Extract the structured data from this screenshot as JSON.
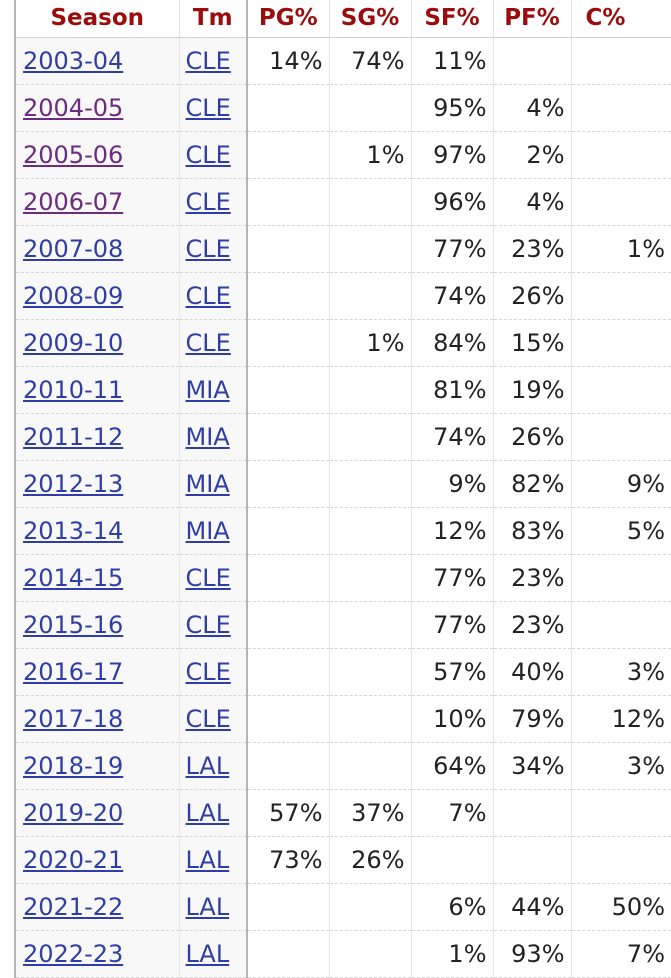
{
  "table": {
    "headers": [
      "Season",
      "Tm",
      "PG%",
      "SG%",
      "SF%",
      "PF%",
      "C%"
    ],
    "rows": [
      {
        "season": "2003-04",
        "team": "CLE",
        "pg": "14%",
        "sg": "74%",
        "sf": "11%",
        "pf": "",
        "c": "",
        "visited": false
      },
      {
        "season": "2004-05",
        "team": "CLE",
        "pg": "",
        "sg": "",
        "sf": "95%",
        "pf": "4%",
        "c": "",
        "visited": true
      },
      {
        "season": "2005-06",
        "team": "CLE",
        "pg": "",
        "sg": "1%",
        "sf": "97%",
        "pf": "2%",
        "c": "",
        "visited": true
      },
      {
        "season": "2006-07",
        "team": "CLE",
        "pg": "",
        "sg": "",
        "sf": "96%",
        "pf": "4%",
        "c": "",
        "visited": true
      },
      {
        "season": "2007-08",
        "team": "CLE",
        "pg": "",
        "sg": "",
        "sf": "77%",
        "pf": "23%",
        "c": "1%",
        "visited": false
      },
      {
        "season": "2008-09",
        "team": "CLE",
        "pg": "",
        "sg": "",
        "sf": "74%",
        "pf": "26%",
        "c": "",
        "visited": false
      },
      {
        "season": "2009-10",
        "team": "CLE",
        "pg": "",
        "sg": "1%",
        "sf": "84%",
        "pf": "15%",
        "c": "",
        "visited": false
      },
      {
        "season": "2010-11",
        "team": "MIA",
        "pg": "",
        "sg": "",
        "sf": "81%",
        "pf": "19%",
        "c": "",
        "visited": false
      },
      {
        "season": "2011-12",
        "team": "MIA",
        "pg": "",
        "sg": "",
        "sf": "74%",
        "pf": "26%",
        "c": "",
        "visited": false
      },
      {
        "season": "2012-13",
        "team": "MIA",
        "pg": "",
        "sg": "",
        "sf": "9%",
        "pf": "82%",
        "c": "9%",
        "visited": false
      },
      {
        "season": "2013-14",
        "team": "MIA",
        "pg": "",
        "sg": "",
        "sf": "12%",
        "pf": "83%",
        "c": "5%",
        "visited": false
      },
      {
        "season": "2014-15",
        "team": "CLE",
        "pg": "",
        "sg": "",
        "sf": "77%",
        "pf": "23%",
        "c": "",
        "visited": false
      },
      {
        "season": "2015-16",
        "team": "CLE",
        "pg": "",
        "sg": "",
        "sf": "77%",
        "pf": "23%",
        "c": "",
        "visited": false
      },
      {
        "season": "2016-17",
        "team": "CLE",
        "pg": "",
        "sg": "",
        "sf": "57%",
        "pf": "40%",
        "c": "3%",
        "visited": false
      },
      {
        "season": "2017-18",
        "team": "CLE",
        "pg": "",
        "sg": "",
        "sf": "10%",
        "pf": "79%",
        "c": "12%",
        "visited": false
      },
      {
        "season": "2018-19",
        "team": "LAL",
        "pg": "",
        "sg": "",
        "sf": "64%",
        "pf": "34%",
        "c": "3%",
        "visited": false
      },
      {
        "season": "2019-20",
        "team": "LAL",
        "pg": "57%",
        "sg": "37%",
        "sf": "7%",
        "pf": "",
        "c": "",
        "visited": false
      },
      {
        "season": "2020-21",
        "team": "LAL",
        "pg": "73%",
        "sg": "26%",
        "sf": "",
        "pf": "",
        "c": "",
        "visited": false
      },
      {
        "season": "2021-22",
        "team": "LAL",
        "pg": "",
        "sg": "",
        "sf": "6%",
        "pf": "44%",
        "c": "50%",
        "visited": false
      },
      {
        "season": "2022-23",
        "team": "LAL",
        "pg": "",
        "sg": "",
        "sf": "1%",
        "pf": "93%",
        "c": "7%",
        "visited": false
      }
    ]
  },
  "colors": {
    "header_text": "#9b0d0d",
    "link": "#2f3ea6",
    "visited_link": "#6b2b7f"
  }
}
